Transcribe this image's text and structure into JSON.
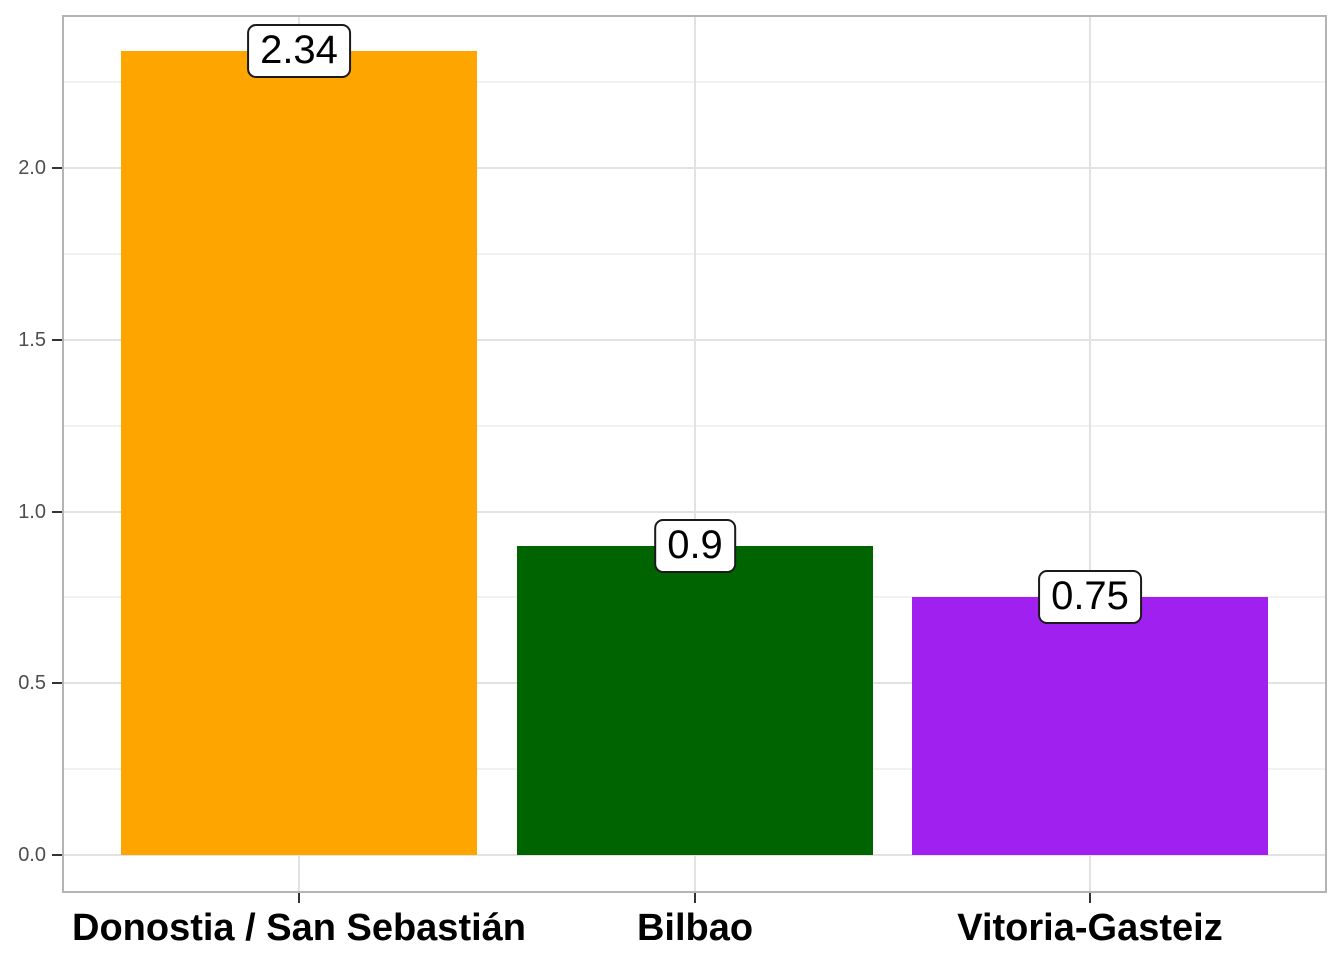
{
  "chart_data": {
    "type": "bar",
    "title": "",
    "xlabel": "",
    "ylabel": "",
    "categories": [
      "Donostia / San Sebastián",
      "Bilbao",
      "Vitoria-Gasteiz"
    ],
    "values": [
      2.34,
      0.9,
      0.75
    ],
    "value_labels": [
      "2.34",
      "0.9",
      "0.75"
    ],
    "bar_colors": [
      "#FFA500",
      "#006400",
      "#A020F0"
    ],
    "ylim": [
      -0.115,
      2.45
    ],
    "y_major_ticks": [
      0.0,
      0.5,
      1.0,
      1.5,
      2.0
    ],
    "y_tick_labels": [
      "0.0",
      "0.5",
      "1.0",
      "1.5",
      "2.0"
    ],
    "y_minor_ticks": [
      0.25,
      0.75,
      1.25,
      1.75,
      2.25
    ],
    "grid": true,
    "legend_position": "none",
    "style": {
      "panel_background": "#ffffff",
      "panel_border_color": "#b4b4b4",
      "grid_major_color": "#e2e2e2",
      "grid_minor_color": "#f1f1f1",
      "axis_tick_color": "#333333",
      "axis_text_color": "#4d4d4d",
      "category_text_color": "#000000",
      "label_box_fill": "#ffffff",
      "label_box_border": "#1a1a1a",
      "label_text_color": "#000000"
    }
  }
}
